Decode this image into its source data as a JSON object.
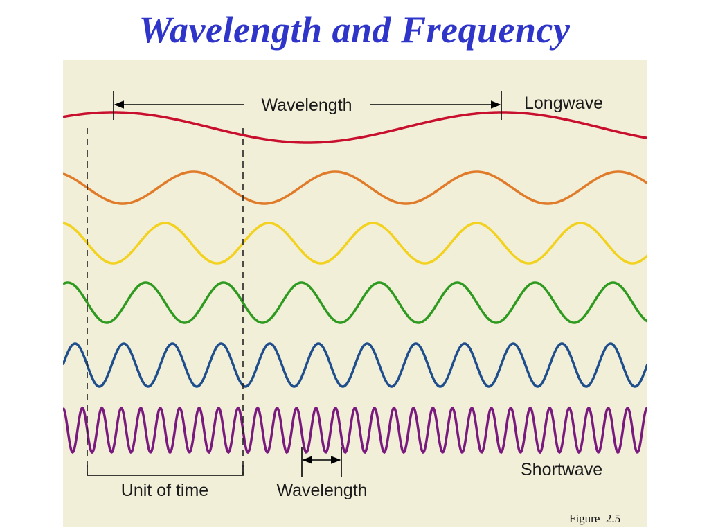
{
  "title": "Wavelength and Frequency",
  "labels": {
    "wavelength_top": "Wavelength",
    "longwave": "Longwave",
    "shortwave": "Shortwave",
    "unit_of_time": "Unit of time",
    "wavelength_bottom": "Wavelength"
  },
  "caption": "Figure  2.5",
  "colors": {
    "panel": "#f2efd9",
    "title": "#2f35c9"
  },
  "waves": [
    {
      "name": "red",
      "color": "#c8102e",
      "cycles_per_unit_time": 0.4
    },
    {
      "name": "orange",
      "color": "#e07b2a",
      "cycles_per_unit_time": 1.1
    },
    {
      "name": "yellow",
      "color": "#f2d21f",
      "cycles_per_unit_time": 1.5
    },
    {
      "name": "green",
      "color": "#2e9a1f",
      "cycles_per_unit_time": 2.0
    },
    {
      "name": "blue",
      "color": "#1f4e8c",
      "cycles_per_unit_time": 3.2
    },
    {
      "name": "purple",
      "color": "#7b1a7e",
      "cycles_per_unit_time": 8.0
    }
  ]
}
